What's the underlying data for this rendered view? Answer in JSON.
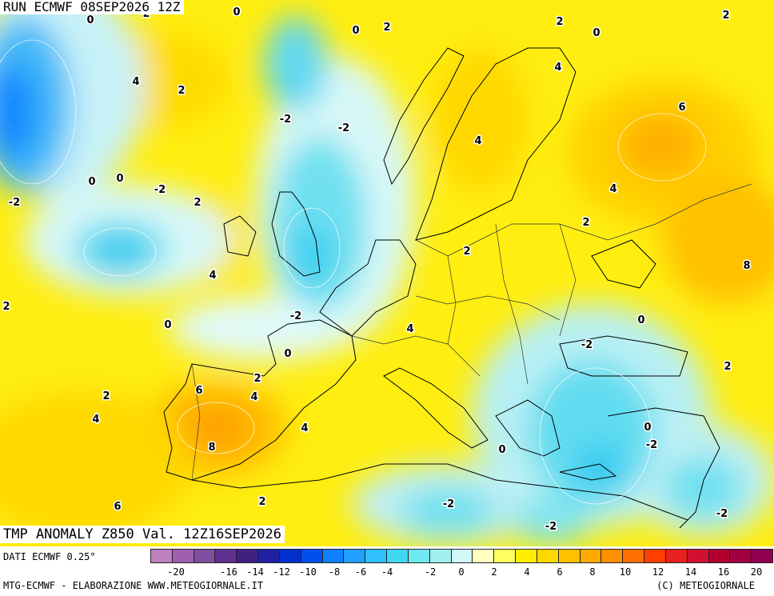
{
  "header": {
    "run": "RUN ECMWF 08SEP2026 12Z",
    "title": "TMP ANOMALY Z850 Val. 12Z16SEP2026"
  },
  "footer": {
    "dati": "DATI ECMWF 0.25°",
    "left": "MTG-ECMWF - ELABORAZIONE WWW.METEOGIORNALE.IT",
    "right": "(C) METEOGIORNALE"
  },
  "legend": {
    "colors": [
      "#c080c0",
      "#a060b0",
      "#8050a0",
      "#603090",
      "#402080",
      "#2020a0",
      "#0030d0",
      "#0050f0",
      "#1080ff",
      "#20a0ff",
      "#30c0ff",
      "#40d8f0",
      "#70e8f0",
      "#a0f0f0",
      "#d0f8f8",
      "#ffffc0",
      "#ffff60",
      "#ffee00",
      "#ffd800",
      "#ffc000",
      "#ffa800",
      "#ff9000",
      "#ff7000",
      "#ff4000",
      "#e82020",
      "#d01030",
      "#b00030",
      "#a00040",
      "#900050"
    ],
    "ticks": [
      "-20",
      "-16",
      "-14",
      "-12",
      "-10",
      "-8",
      "-6",
      "-4",
      "-2",
      "0",
      "2",
      "4",
      "6",
      "8",
      "10",
      "12",
      "14",
      "16",
      "20"
    ]
  },
  "map_labels": [
    {
      "t": "0"
    },
    {
      "t": "2"
    },
    {
      "t": "0"
    },
    {
      "t": "0"
    },
    {
      "t": "2"
    },
    {
      "t": "2"
    },
    {
      "t": "0"
    },
    {
      "t": "2"
    },
    {
      "t": "4"
    },
    {
      "t": "2"
    },
    {
      "t": "4"
    },
    {
      "t": "-2"
    },
    {
      "t": "-2"
    },
    {
      "t": "4"
    },
    {
      "t": "6"
    },
    {
      "t": "0"
    },
    {
      "t": "0"
    },
    {
      "t": "-2"
    },
    {
      "t": "-2"
    },
    {
      "t": "2"
    },
    {
      "t": "4"
    },
    {
      "t": "2"
    },
    {
      "t": "4"
    },
    {
      "t": "2"
    },
    {
      "t": "8"
    },
    {
      "t": "2"
    },
    {
      "t": "0"
    },
    {
      "t": "-2"
    },
    {
      "t": "4"
    },
    {
      "t": "0"
    },
    {
      "t": "0"
    },
    {
      "t": "-2"
    },
    {
      "t": "2"
    },
    {
      "t": "2"
    },
    {
      "t": "6"
    },
    {
      "t": "4"
    },
    {
      "t": "2"
    },
    {
      "t": "4"
    },
    {
      "t": "4"
    },
    {
      "t": "8"
    },
    {
      "t": "0"
    },
    {
      "t": "0"
    },
    {
      "t": "-2"
    },
    {
      "t": "6"
    },
    {
      "t": "2"
    },
    {
      "t": "-2"
    },
    {
      "t": "-2"
    },
    {
      "t": "-2"
    }
  ]
}
